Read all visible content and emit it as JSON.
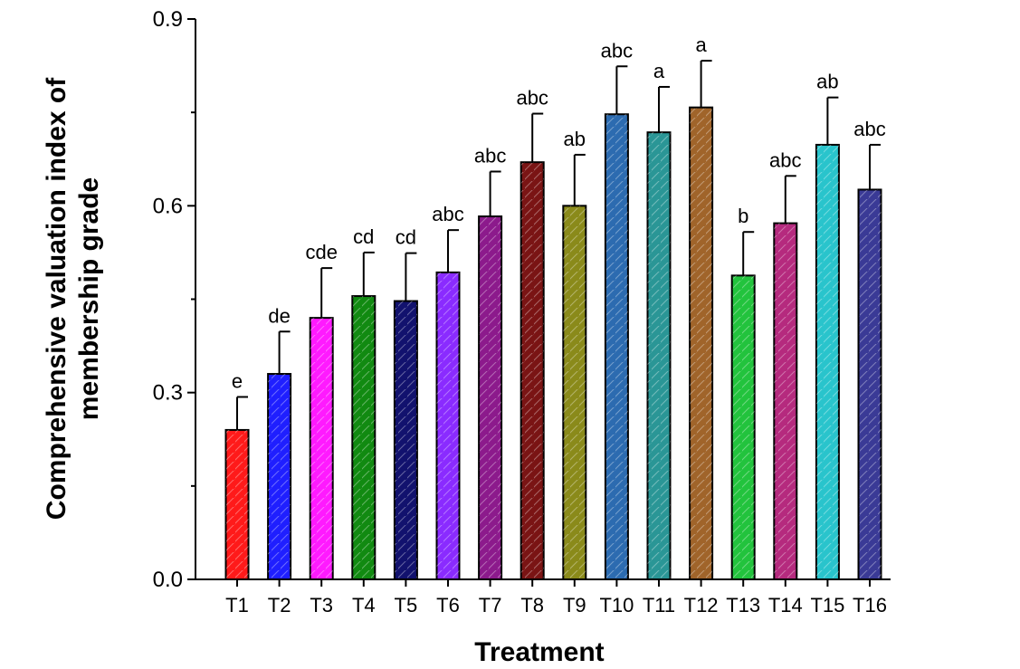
{
  "chart_data": {
    "type": "bar",
    "title": "",
    "xlabel": "Treatment",
    "ylabel_line1": "Comprehensive valuation index of",
    "ylabel_line2": "membership grade",
    "ylim": [
      0,
      0.9
    ],
    "yticks": [
      "0.0",
      "0.3",
      "0.6",
      "0.9"
    ],
    "grid": false,
    "categories": [
      "T1",
      "T2",
      "T3",
      "T4",
      "T5",
      "T6",
      "T7",
      "T8",
      "T9",
      "T10",
      "T11",
      "T12",
      "T13",
      "T14",
      "T15",
      "T16"
    ],
    "values": [
      0.24,
      0.33,
      0.42,
      0.455,
      0.447,
      0.493,
      0.583,
      0.67,
      0.6,
      0.747,
      0.718,
      0.758,
      0.488,
      0.572,
      0.698,
      0.626
    ],
    "errors": [
      0.053,
      0.068,
      0.08,
      0.07,
      0.077,
      0.068,
      0.072,
      0.078,
      0.082,
      0.077,
      0.073,
      0.075,
      0.07,
      0.076,
      0.076,
      0.072
    ],
    "significance_letters": [
      "e",
      "de",
      "cde",
      "cd",
      "cd",
      "abc",
      "abc",
      "abc",
      "ab",
      "abc",
      "a",
      "a",
      "b",
      "abc",
      "ab",
      "abc"
    ],
    "colors": [
      "#ff1a1a",
      "#1f1fff",
      "#ff1aff",
      "#118a11",
      "#12126e",
      "#8a2bff",
      "#8c1a8c",
      "#7a1414",
      "#8a8a1a",
      "#2c6bb0",
      "#2a9696",
      "#a0642a",
      "#22c33d",
      "#b52a7e",
      "#29c4cc",
      "#3a3a96"
    ]
  }
}
